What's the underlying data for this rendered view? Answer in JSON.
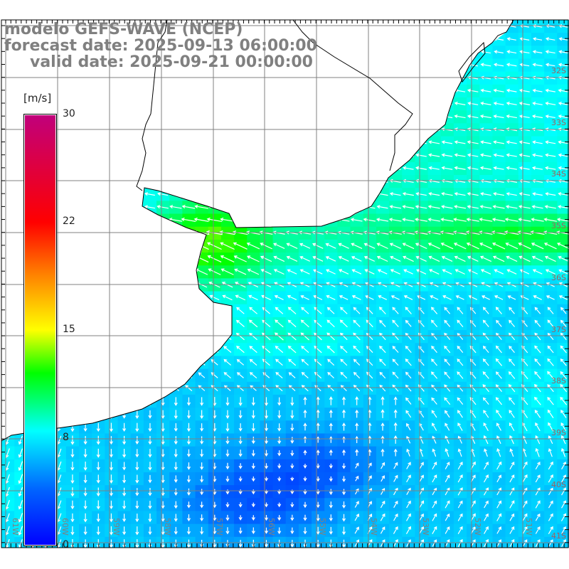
{
  "title": {
    "model": "modelo GEFS-WAVE (NCEP)",
    "forecast": "forecast date: 2025-09-13 06:00:00",
    "valid": "valid date: 2025-09-21 00:00:00"
  },
  "colorbar": {
    "unit": "[m/s]",
    "labels": [
      "30",
      "22",
      "15",
      "8",
      "0"
    ],
    "range": [
      0,
      30
    ],
    "colors": [
      "#0000ff",
      "#00ffff",
      "#00ff00",
      "#ffff00",
      "#ff0000",
      "#c0007c"
    ]
  },
  "axes": {
    "longitudes": [
      "61W",
      "60W",
      "59W",
      "58W",
      "57W",
      "56W",
      "55W",
      "54W",
      "53W",
      "52W",
      "51W"
    ],
    "latitudes": [
      "32S",
      "33S",
      "34S",
      "35S",
      "36S",
      "37S",
      "38S",
      "39S",
      "40S",
      "41S"
    ]
  },
  "colors": {
    "grid": "#808080",
    "coast": "#000000",
    "arrow": "#ffffff",
    "land": "#ffffff"
  }
}
